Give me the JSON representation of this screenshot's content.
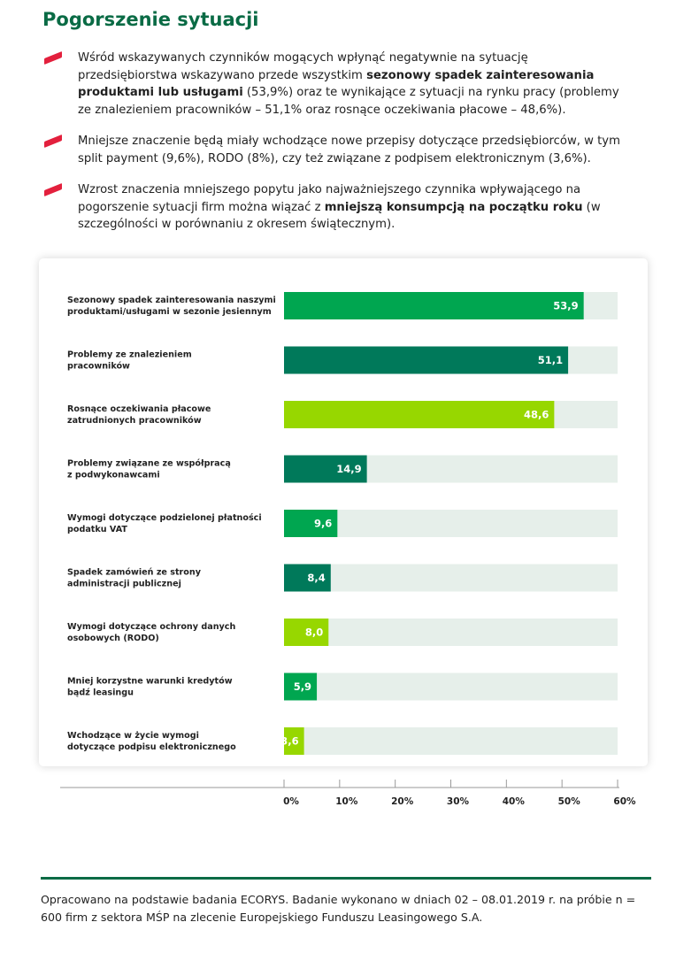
{
  "title": "Pogorszenie sytuacji",
  "bullets": [
    {
      "pre": "Wśród wskazywanych czynników mogących wpłynąć negatywnie na sytuację przedsiębiorstwa wskazywano przede wszystkim ",
      "bold": "sezonowy spadek zainteresowania produktami lub usługami",
      "post": " (53,9%) oraz te wynikające z sytuacji na rynku pracy (problemy ze znalezieniem pracowników – 51,1% oraz rosnące oczekiwania płacowe – 48,6%)."
    },
    {
      "text": "Mniejsze znaczenie będą miały wchodzące nowe przepisy dotyczące przedsiębiorców, w tym split payment (9,6%), RODO (8%), czy też związane z podpisem elektronicznym (3,6%)."
    },
    {
      "pre": "Wzrost znaczenia mniejszego popytu jako najważniejszego czynnika wpływającego na pogorszenie sytuacji firm można wiązać z ",
      "bold": "mniejszą konsumpcją na początku roku",
      "post": " (w szczególności w porównaniu z okresem świątecznym)."
    }
  ],
  "chart_data": {
    "type": "bar",
    "orientation": "horizontal",
    "categories": [
      [
        "Sezonowy spadek zainteresowania naszymi",
        "produktami/usługami w sezonie jesiennym"
      ],
      [
        "Problemy ze znalezieniem",
        "pracowników"
      ],
      [
        "Rosnące oczekiwania płacowe",
        "zatrudnionych pracowników"
      ],
      [
        "Problemy związane ze współpracą",
        "z podwykonawcami"
      ],
      [
        "Wymogi dotyczące podzielonej płatności",
        "podatku VAT"
      ],
      [
        "Spadek zamówień ze strony",
        "administracji publicznej"
      ],
      [
        "Wymogi dotyczące ochrony danych",
        "osobowych (RODO)"
      ],
      [
        "Mniej korzystne warunki kredytów",
        "bądź leasingu"
      ],
      [
        "Wchodzące w życie wymogi",
        "dotyczące podpisu elektronicznego"
      ]
    ],
    "values": [
      53.9,
      51.1,
      48.6,
      14.9,
      9.6,
      8.4,
      8.0,
      5.9,
      3.6
    ],
    "value_labels": [
      "53,9",
      "51,1",
      "48,6",
      "14,9",
      "9,6",
      "8,4",
      "8,0",
      "5,9",
      "3,6"
    ],
    "bar_colors": [
      "#00a650",
      "#00795a",
      "#97d700",
      "#00795a",
      "#00a650",
      "#00795a",
      "#97d700",
      "#00a650",
      "#97d700"
    ],
    "track_color": "#e6efea",
    "xlim": [
      0,
      60
    ],
    "xticks": [
      0,
      10,
      20,
      30,
      40,
      50,
      60
    ],
    "xtick_labels": [
      "0%",
      "10%",
      "20%",
      "30%",
      "40%",
      "50%",
      "60%"
    ]
  },
  "footnote": "Opracowano na podstawie badania ECORYS. Badanie wykonano w dniach 02 – 08.01.2019 r. na próbie n = 600 firm z sektora MŚP na zlecenie Europejskiego Funduszu Leasingowego S.A."
}
